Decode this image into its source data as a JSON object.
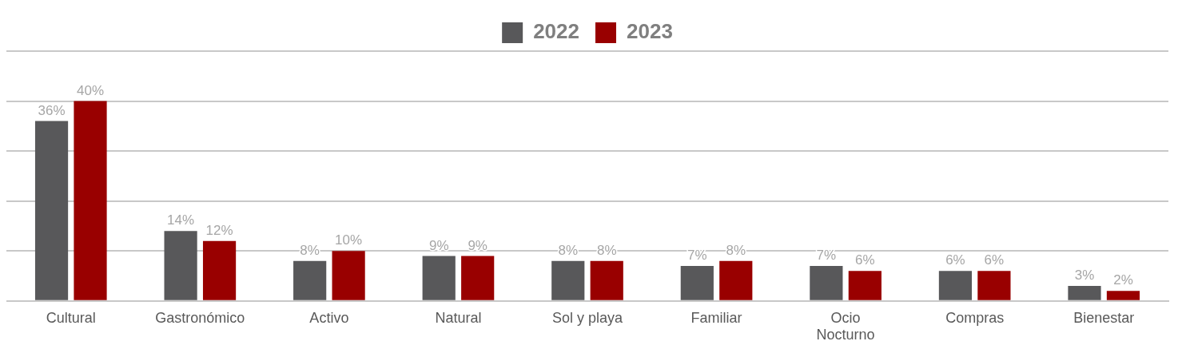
{
  "chart_data": {
    "type": "bar",
    "categories": [
      "Cultural",
      "Gastronómico",
      "Activo",
      "Natural",
      "Sol y playa",
      "Familiar",
      "Ocio Nocturno",
      "Compras",
      "Bienestar"
    ],
    "series": [
      {
        "name": "2022",
        "color": "#58585a",
        "values": [
          36,
          14,
          8,
          9,
          8,
          7,
          7,
          6,
          3
        ],
        "value_labels": [
          "36%",
          "14%",
          "8%",
          "9%",
          "8%",
          "7%",
          "7%",
          "6%",
          "3%"
        ]
      },
      {
        "name": "2023",
        "color": "#990000",
        "values": [
          40,
          12,
          10,
          9,
          8,
          8,
          6,
          6,
          2
        ],
        "value_labels": [
          "40%",
          "12%",
          "10%",
          "9%",
          "8%",
          "8%",
          "6%",
          "6%",
          "2%"
        ]
      }
    ],
    "tick_labels": "x",
    "grid": "y",
    "legend": "top"
  }
}
